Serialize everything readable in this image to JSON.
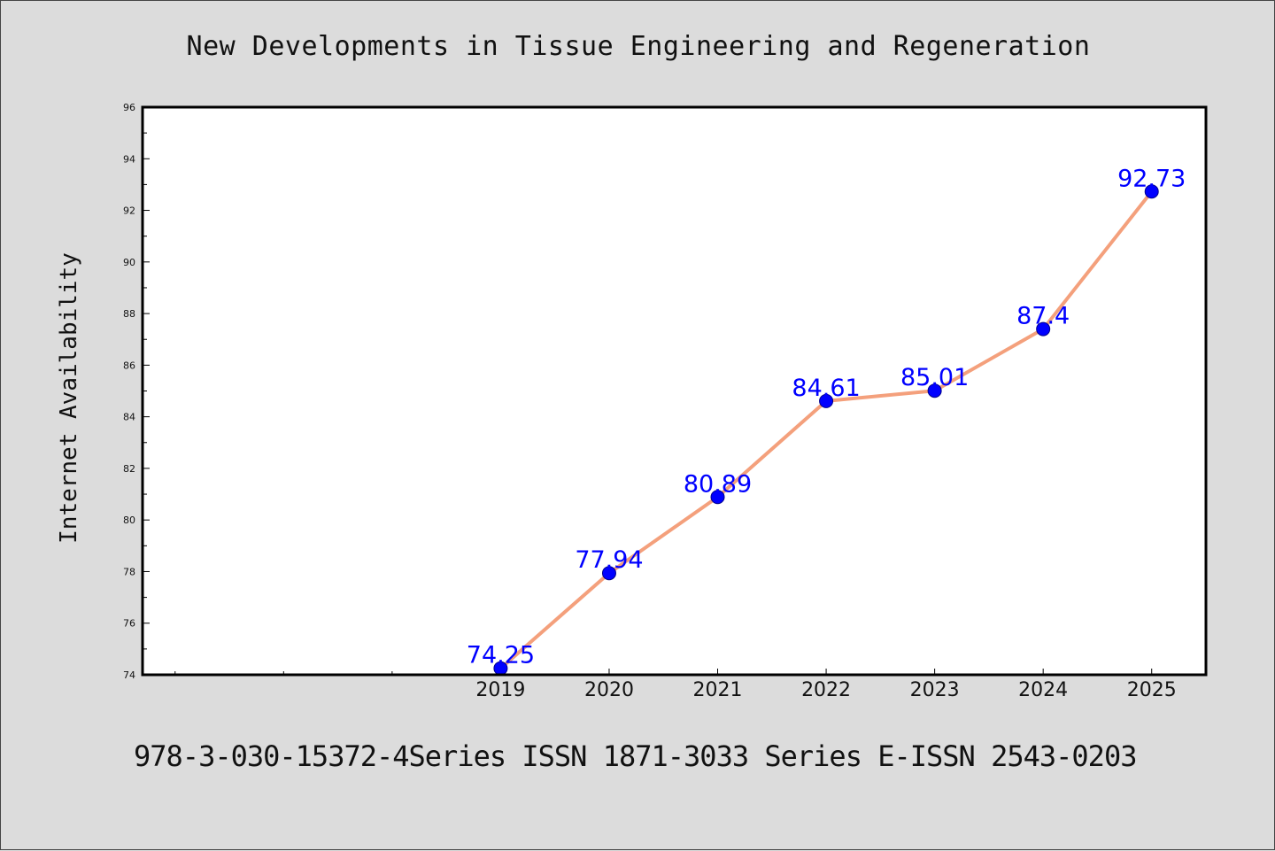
{
  "title": "New Developments in Tissue Engineering and Regeneration",
  "footer": "978-3-030-15372-4Series ISSN 1871-3033 Series E-ISSN 2543-0203",
  "colors": {
    "background": "#dcdcdc",
    "plot_background": "#ffffff",
    "line": "#f4a07c",
    "marker": "#0000ff",
    "data_label": "#0000ff"
  },
  "chart_data": {
    "type": "line",
    "title": "New Developments in Tissue Engineering and Regeneration",
    "xlabel": "",
    "ylabel": "Internet Availability",
    "x": [
      2019,
      2020,
      2021,
      2022,
      2023,
      2024,
      2025
    ],
    "x_tick_labels": [
      "2019",
      "2020",
      "2021",
      "2022",
      "2023",
      "2024",
      "2025"
    ],
    "xlim": [
      2015.7,
      2025.5
    ],
    "series": [
      {
        "values": [
          74.25,
          77.94,
          80.89,
          84.61,
          85.01,
          87.4,
          92.73
        ],
        "data_labels": [
          "74.25",
          "77.94",
          "80.89",
          "84.61",
          "85.01",
          "87.4",
          "92.73"
        ]
      }
    ],
    "ylim": [
      74,
      96
    ],
    "y_ticks": [
      74,
      76,
      78,
      80,
      82,
      84,
      86,
      88,
      90,
      92,
      94,
      96
    ],
    "x_minor_ticks": [
      2016.0,
      2017.0,
      2018.0
    ],
    "grid": false,
    "legend": "none"
  }
}
